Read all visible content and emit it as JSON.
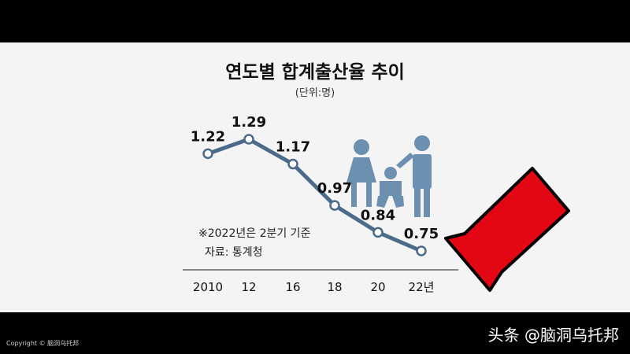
{
  "chart_data": {
    "type": "line",
    "title": "연도별 합계출산율 추이",
    "subtitle": "(단위:명)",
    "x": [
      "2010",
      "12",
      "16",
      "18",
      "20",
      "22년"
    ],
    "values": [
      1.22,
      1.29,
      1.17,
      0.97,
      0.84,
      0.75
    ],
    "value_labels": [
      "1.22",
      "1.29",
      "1.17",
      "0.97",
      "0.84",
      "0.75"
    ],
    "note": "※2022년은 2분기 기준",
    "source": "자료: 통계청",
    "ylim": [
      0.6,
      1.4
    ],
    "grid": false,
    "colors": {
      "line": "#4a6b8a",
      "point_fill": "#ffffff",
      "icon": "#6d8fb0",
      "arrow": "#e30613"
    }
  },
  "watermark": {
    "bottom_left": "Copyright © 脑洞乌托邦",
    "bottom_right": "头条 @脑洞乌托邦"
  },
  "icons": [
    "family-icon",
    "arrow-icon"
  ]
}
